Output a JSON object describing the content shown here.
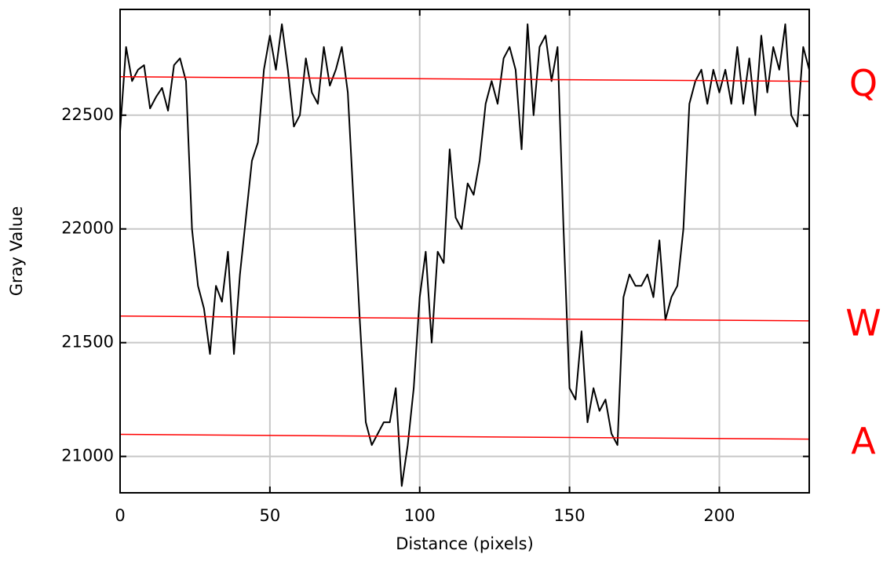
{
  "chart_data": {
    "type": "line",
    "xlabel": "Distance (pixels)",
    "ylabel": "Gray Value",
    "xlim": [
      0,
      230
    ],
    "ylim": [
      20840,
      22965
    ],
    "xticks": [
      0,
      50,
      100,
      150,
      200
    ],
    "yticks": [
      21000,
      21500,
      22000,
      22500
    ],
    "grid": true,
    "series": [
      {
        "color": "#000000",
        "x": [
          0,
          2,
          4,
          6,
          8,
          10,
          12,
          14,
          16,
          18,
          20,
          22,
          24,
          26,
          28,
          30,
          32,
          34,
          36,
          38,
          40,
          42,
          44,
          46,
          48,
          50,
          52,
          54,
          56,
          58,
          60,
          62,
          64,
          66,
          68,
          70,
          72,
          74,
          76,
          78,
          80,
          82,
          84,
          86,
          88,
          90,
          92,
          94,
          96,
          98,
          100,
          102,
          104,
          106,
          108,
          110,
          112,
          114,
          116,
          118,
          120,
          122,
          124,
          126,
          128,
          130,
          132,
          134,
          136,
          138,
          140,
          142,
          144,
          146,
          148,
          150,
          152,
          154,
          156,
          158,
          160,
          162,
          164,
          166,
          168,
          170,
          172,
          174,
          176,
          178,
          180,
          182,
          184,
          186,
          188,
          190,
          192,
          194,
          196,
          198,
          200,
          202,
          204,
          206,
          208,
          210,
          212,
          214,
          216,
          218,
          220,
          222,
          224,
          226,
          228,
          230
        ],
        "values": [
          22430,
          22800,
          22650,
          22700,
          22720,
          22530,
          22580,
          22620,
          22520,
          22720,
          22750,
          22650,
          22000,
          21750,
          21650,
          21450,
          21750,
          21680,
          21900,
          21450,
          21800,
          22050,
          22300,
          22380,
          22700,
          22850,
          22700,
          22900,
          22700,
          22450,
          22500,
          22750,
          22600,
          22550,
          22800,
          22630,
          22700,
          22800,
          22600,
          22100,
          21600,
          21150,
          21050,
          21100,
          21150,
          21150,
          21300,
          20870,
          21050,
          21300,
          21700,
          21900,
          21500,
          21900,
          21850,
          22350,
          22050,
          22000,
          22200,
          22150,
          22300,
          22550,
          22650,
          22550,
          22750,
          22800,
          22700,
          22350,
          22900,
          22500,
          22800,
          22850,
          22650,
          22800,
          22000,
          21300,
          21250,
          21550,
          21150,
          21300,
          21200,
          21250,
          21100,
          21050,
          21700,
          21800,
          21750,
          21750,
          21800,
          21700,
          21950,
          21600,
          21700,
          21750,
          22000,
          22550,
          22650,
          22700,
          22550,
          22700,
          22600,
          22700,
          22550,
          22800,
          22550,
          22750,
          22500,
          22850,
          22600,
          22800,
          22700,
          22900,
          22500,
          22450,
          22800,
          22700
        ]
      },
      {
        "name": "Q",
        "color": "#ff0000",
        "x": [
          0,
          230
        ],
        "values": [
          22669,
          22649
        ]
      },
      {
        "name": "W",
        "color": "#ff0000",
        "x": [
          0,
          230
        ],
        "values": [
          21617,
          21596
        ]
      },
      {
        "name": "A",
        "color": "#ff0000",
        "x": [
          0,
          230
        ],
        "values": [
          21097,
          21076
        ]
      }
    ]
  }
}
